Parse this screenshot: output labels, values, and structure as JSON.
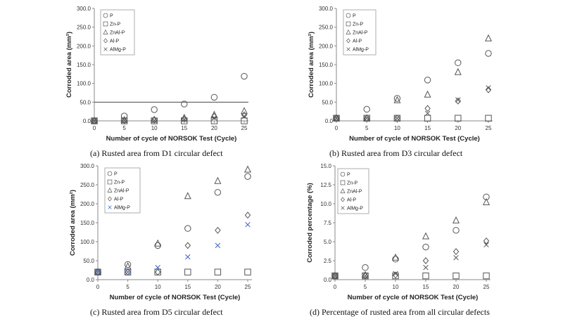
{
  "chart_data": [
    {
      "type": "scatter",
      "caption": "(a)  Rusted  area  from  D1  circular  defect",
      "xlabel": "Number of cycle of NORSOK Test (Cycle)",
      "ylabel": "Corroded area (mm²)",
      "xlim": [
        0,
        25
      ],
      "ylim": [
        0,
        300
      ],
      "xticks": [
        "0",
        "5",
        "10",
        "15",
        "20",
        "25"
      ],
      "yticks": [
        "0.0",
        "50.0",
        "100.0",
        "150.0",
        "200.0",
        "250.0",
        "300.0"
      ],
      "reference_line_y": 50,
      "legend_position": "top-left",
      "series": [
        {
          "name": "P",
          "marker": "circle",
          "color": "#555555",
          "x": [
            0,
            5,
            10,
            15,
            20,
            25
          ],
          "y": [
            0,
            13,
            30,
            45,
            63,
            119
          ]
        },
        {
          "name": "Zn-P",
          "marker": "square",
          "color": "#555555",
          "x": [
            0,
            5,
            10,
            15,
            20,
            25
          ],
          "y": [
            0,
            0,
            0,
            0,
            0,
            0
          ]
        },
        {
          "name": "ZnAl-P",
          "marker": "triangle",
          "color": "#555555",
          "x": [
            0,
            5,
            10,
            15,
            20,
            25
          ],
          "y": [
            0,
            2,
            3,
            8,
            16,
            26
          ]
        },
        {
          "name": "Al-P",
          "marker": "diamond",
          "color": "#555555",
          "x": [
            0,
            5,
            10,
            15,
            20,
            25
          ],
          "y": [
            0,
            1,
            2,
            5,
            12,
            16
          ]
        },
        {
          "name": "AlMg-P",
          "marker": "x",
          "color": "#555555",
          "x": [
            0,
            5,
            10,
            15,
            20,
            25
          ],
          "y": [
            0,
            1,
            1,
            3,
            8,
            12
          ]
        }
      ]
    },
    {
      "type": "scatter",
      "caption": "(b)  Rusted  area  from  D3  circular  defect",
      "xlabel": "Number of cycle of NORSOK Test (Cycle)",
      "ylabel": "Corroded area (mm²)",
      "xlim": [
        0,
        25
      ],
      "ylim": [
        0,
        300
      ],
      "xticks": [
        "0",
        "5",
        "10",
        "15",
        "20",
        "25"
      ],
      "yticks": [
        "0.0",
        "50.0",
        "100.0",
        "150.0",
        "200.0",
        "250.0",
        "300.0"
      ],
      "legend_position": "top-left",
      "series": [
        {
          "name": "P",
          "marker": "circle",
          "color": "#555555",
          "x": [
            0,
            5,
            10,
            15,
            20,
            25
          ],
          "y": [
            7,
            31,
            60,
            109,
            155,
            180
          ]
        },
        {
          "name": "Zn-P",
          "marker": "square",
          "color": "#555555",
          "x": [
            0,
            5,
            10,
            15,
            20,
            25
          ],
          "y": [
            7,
            7,
            7,
            7,
            7,
            7
          ]
        },
        {
          "name": "ZnAl-P",
          "marker": "triangle",
          "color": "#555555",
          "x": [
            0,
            5,
            10,
            15,
            20,
            25
          ],
          "y": [
            7,
            7,
            55,
            70,
            130,
            220
          ]
        },
        {
          "name": "Al-P",
          "marker": "diamond",
          "color": "#555555",
          "x": [
            0,
            5,
            10,
            15,
            20,
            25
          ],
          "y": [
            7,
            7,
            7,
            33,
            53,
            83
          ]
        },
        {
          "name": "AlMg-P",
          "marker": "x",
          "color": "#555555",
          "x": [
            0,
            5,
            10,
            15,
            20,
            25
          ],
          "y": [
            7,
            7,
            7,
            20,
            56,
            88
          ]
        }
      ]
    },
    {
      "type": "scatter",
      "caption": "(c)  Rusted  area  from  D5  circular  defect",
      "xlabel": "Number of cycle of NORSOK Test (Cycle)",
      "ylabel": "Corroded area (mm²)",
      "xlim": [
        0,
        25
      ],
      "ylim": [
        0,
        300
      ],
      "xticks": [
        "0",
        "5",
        "10",
        "15",
        "20",
        "25"
      ],
      "yticks": [
        "0.0",
        "50.0",
        "100.0",
        "150.0",
        "200.0",
        "250.0",
        "300.0"
      ],
      "legend_position": "top-left",
      "series": [
        {
          "name": "P",
          "marker": "circle",
          "color": "#555555",
          "x": [
            0,
            5,
            10,
            15,
            20,
            25
          ],
          "y": [
            20,
            40,
            90,
            135,
            230,
            272
          ]
        },
        {
          "name": "Zn-P",
          "marker": "square",
          "color": "#555555",
          "x": [
            0,
            5,
            10,
            15,
            20,
            25
          ],
          "y": [
            20,
            20,
            20,
            20,
            20,
            20
          ]
        },
        {
          "name": "ZnAl-P",
          "marker": "triangle",
          "color": "#555555",
          "x": [
            0,
            5,
            10,
            15,
            20,
            25
          ],
          "y": [
            20,
            35,
            95,
            220,
            260,
            290
          ]
        },
        {
          "name": "Al-P",
          "marker": "diamond",
          "color": "#555555",
          "x": [
            0,
            5,
            10,
            15,
            20,
            25
          ],
          "y": [
            20,
            20,
            20,
            90,
            130,
            170
          ]
        },
        {
          "name": "AlMg-P",
          "marker": "x",
          "color": "#3b63c4",
          "x": [
            0,
            5,
            10,
            15,
            20,
            25
          ],
          "y": [
            20,
            20,
            32,
            60,
            90,
            145
          ]
        }
      ]
    },
    {
      "type": "scatter",
      "caption": "(d)  Percentage  of  rusted  area  from  all  circular  defects",
      "xlabel": "Number of cycle of NORSOK Test (Cycle)",
      "ylabel": "Corroded percentage (%)",
      "xlim": [
        0,
        25
      ],
      "ylim": [
        0,
        15
      ],
      "xticks": [
        "0",
        "5",
        "10",
        "15",
        "20",
        "25"
      ],
      "yticks": [
        "0.0",
        "2.5",
        "5.0",
        "7.5",
        "10.0",
        "12.5",
        "15.0"
      ],
      "legend_position": "top-left",
      "series": [
        {
          "name": "P",
          "marker": "circle",
          "color": "#555555",
          "x": [
            0,
            5,
            10,
            15,
            20,
            25
          ],
          "y": [
            0.5,
            1.6,
            2.7,
            4.3,
            6.5,
            10.9
          ]
        },
        {
          "name": "Zn-P",
          "marker": "square",
          "color": "#555555",
          "x": [
            0,
            5,
            10,
            15,
            20,
            25
          ],
          "y": [
            0.5,
            0.5,
            0.5,
            0.5,
            0.5,
            0.5
          ]
        },
        {
          "name": "ZnAl-P",
          "marker": "triangle",
          "color": "#555555",
          "x": [
            0,
            5,
            10,
            15,
            20,
            25
          ],
          "y": [
            0.5,
            0.6,
            2.9,
            5.7,
            7.8,
            10.2
          ]
        },
        {
          "name": "Al-P",
          "marker": "diamond",
          "color": "#555555",
          "x": [
            0,
            5,
            10,
            15,
            20,
            25
          ],
          "y": [
            0.5,
            0.5,
            0.6,
            2.5,
            3.7,
            5.1
          ]
        },
        {
          "name": "AlMg-P",
          "marker": "x",
          "color": "#555555",
          "x": [
            0,
            5,
            10,
            15,
            20,
            25
          ],
          "y": [
            0.5,
            0.5,
            0.8,
            1.6,
            2.9,
            4.6
          ]
        }
      ]
    }
  ]
}
